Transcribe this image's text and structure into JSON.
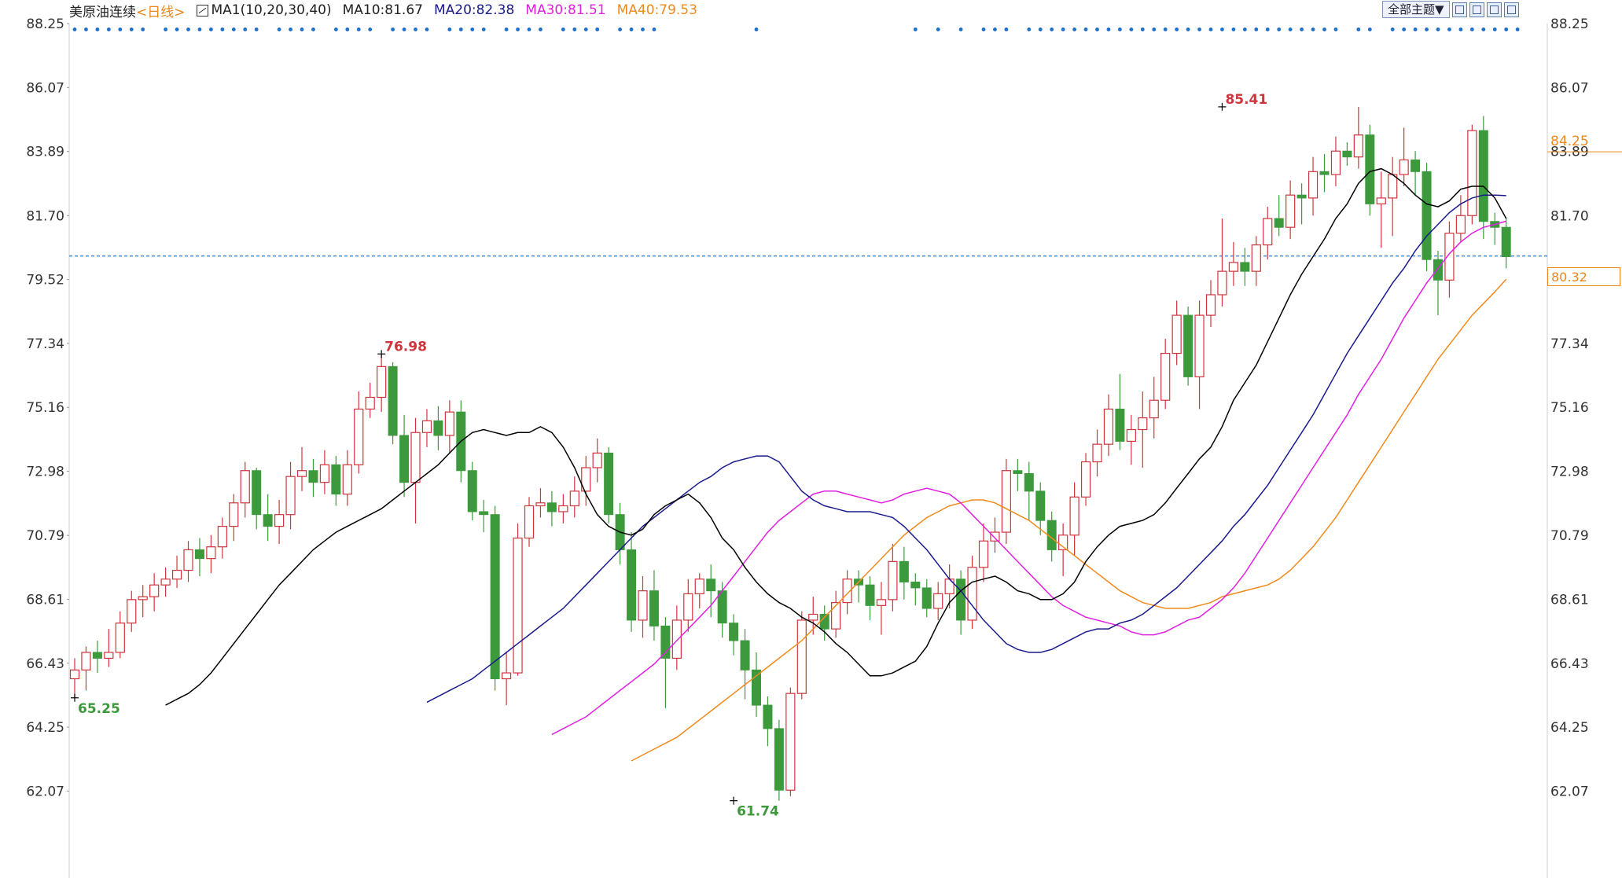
{
  "legend": {
    "symbol": "美原油连续",
    "period": "<日线>",
    "ma_label": "MA1(10,20,30,40)",
    "ma10": "MA10:81.67",
    "ma20": "MA20:82.38",
    "ma30": "MA30:81.51",
    "ma40": "MA40:79.53"
  },
  "toolbar": {
    "theme_button": "全部主题▼",
    "icons": [
      "fullscreen-icon",
      "layout-icon",
      "play-icon",
      "exit-icon"
    ]
  },
  "colors": {
    "up": "#d0343c",
    "down": "#3c9a3c",
    "ma10": "#000000",
    "ma20": "#1a1a8c",
    "ma30": "#e020e0",
    "ma40": "#f08a1c",
    "dots": "#1f6fc8",
    "current_line": "#2a7fd4"
  },
  "price_box": "80.32",
  "chart_data": {
    "type": "candlestick",
    "ylim": [
      60.9,
      88.25
    ],
    "yticks": [
      "88.25",
      "86.07",
      "83.89",
      "81.70",
      "79.52",
      "77.34",
      "75.16",
      "72.98",
      "70.79",
      "68.61",
      "66.43",
      "64.25",
      "62.07"
    ],
    "right_highlight": "84.25",
    "current_price": 80.32,
    "annotations": [
      {
        "label": "65.25",
        "index": 0,
        "value": 65.25,
        "type": "low"
      },
      {
        "label": "76.98",
        "index": 27,
        "value": 76.98,
        "type": "high"
      },
      {
        "label": "61.74",
        "index": 58,
        "value": 61.74,
        "type": "low"
      },
      {
        "label": "85.41",
        "index": 101,
        "value": 85.41,
        "type": "high"
      }
    ],
    "candles": [
      [
        65.9,
        66.2,
        65.25,
        66.6
      ],
      [
        66.2,
        66.8,
        65.5,
        67.0
      ],
      [
        66.8,
        66.6,
        66.1,
        67.2
      ],
      [
        66.6,
        66.8,
        66.3,
        67.6
      ],
      [
        66.8,
        67.8,
        66.6,
        68.2
      ],
      [
        67.8,
        68.6,
        67.5,
        68.9
      ],
      [
        68.6,
        68.7,
        68.0,
        69.1
      ],
      [
        68.7,
        69.1,
        68.2,
        69.5
      ],
      [
        69.1,
        69.3,
        68.7,
        69.7
      ],
      [
        69.3,
        69.6,
        69.0,
        70.1
      ],
      [
        69.6,
        70.3,
        69.2,
        70.6
      ],
      [
        70.3,
        70.0,
        69.4,
        70.7
      ],
      [
        70.0,
        70.4,
        69.5,
        70.8
      ],
      [
        70.4,
        71.1,
        70.0,
        71.4
      ],
      [
        71.1,
        71.9,
        70.6,
        72.2
      ],
      [
        71.9,
        73.0,
        71.4,
        73.3
      ],
      [
        73.0,
        71.5,
        71.0,
        73.1
      ],
      [
        71.5,
        71.1,
        70.6,
        72.2
      ],
      [
        71.1,
        71.5,
        70.5,
        72.0
      ],
      [
        71.5,
        72.8,
        71.0,
        73.3
      ],
      [
        72.8,
        73.0,
        72.3,
        73.8
      ],
      [
        73.0,
        72.6,
        72.1,
        73.4
      ],
      [
        72.6,
        73.2,
        72.2,
        73.7
      ],
      [
        73.2,
        72.2,
        71.8,
        73.5
      ],
      [
        72.2,
        73.2,
        71.8,
        73.7
      ],
      [
        73.2,
        75.1,
        72.9,
        75.7
      ],
      [
        75.1,
        75.5,
        74.8,
        76.0
      ],
      [
        75.5,
        76.55,
        75.0,
        76.98
      ],
      [
        76.55,
        74.2,
        73.9,
        76.7
      ],
      [
        74.2,
        72.6,
        72.1,
        74.9
      ],
      [
        72.6,
        74.3,
        71.2,
        74.8
      ],
      [
        74.3,
        74.7,
        73.8,
        75.1
      ],
      [
        74.7,
        74.2,
        73.7,
        75.2
      ],
      [
        74.2,
        75.0,
        73.6,
        75.4
      ],
      [
        75.0,
        73.0,
        72.6,
        75.4
      ],
      [
        73.0,
        71.6,
        71.3,
        73.3
      ],
      [
        71.6,
        71.5,
        70.9,
        72.0
      ],
      [
        71.5,
        65.9,
        65.5,
        71.8
      ],
      [
        65.9,
        66.1,
        65.0,
        66.8
      ],
      [
        66.1,
        70.7,
        66.0,
        71.2
      ],
      [
        70.7,
        71.8,
        70.4,
        72.1
      ],
      [
        71.8,
        71.9,
        71.4,
        72.4
      ],
      [
        71.9,
        71.6,
        71.1,
        72.3
      ],
      [
        71.6,
        71.8,
        71.2,
        72.2
      ],
      [
        71.8,
        72.3,
        71.4,
        72.8
      ],
      [
        72.3,
        73.1,
        71.8,
        73.5
      ],
      [
        73.1,
        73.6,
        72.6,
        74.1
      ],
      [
        73.6,
        71.5,
        71.2,
        73.8
      ],
      [
        71.5,
        70.3,
        69.8,
        71.9
      ],
      [
        70.3,
        67.9,
        67.5,
        70.9
      ],
      [
        67.9,
        68.9,
        67.3,
        69.4
      ],
      [
        68.9,
        67.7,
        67.2,
        69.6
      ],
      [
        67.7,
        66.6,
        64.9,
        68.0
      ],
      [
        66.6,
        67.9,
        66.2,
        68.4
      ],
      [
        67.9,
        68.8,
        67.5,
        69.3
      ],
      [
        68.8,
        69.3,
        68.3,
        69.5
      ],
      [
        69.3,
        68.9,
        68.0,
        69.8
      ],
      [
        68.9,
        67.8,
        67.3,
        69.2
      ],
      [
        67.8,
        67.2,
        66.7,
        68.1
      ],
      [
        67.2,
        66.2,
        65.2,
        67.6
      ],
      [
        66.2,
        65.0,
        64.6,
        66.8
      ],
      [
        65.0,
        64.2,
        63.6,
        65.3
      ],
      [
        64.2,
        62.1,
        61.74,
        64.5
      ],
      [
        62.1,
        65.4,
        61.9,
        65.6
      ],
      [
        65.4,
        67.9,
        65.2,
        68.2
      ],
      [
        67.9,
        68.1,
        67.4,
        68.7
      ],
      [
        68.1,
        67.6,
        67.2,
        68.4
      ],
      [
        67.6,
        68.5,
        67.3,
        68.9
      ],
      [
        68.5,
        69.3,
        68.1,
        69.6
      ],
      [
        69.3,
        69.1,
        68.5,
        69.6
      ],
      [
        69.1,
        68.4,
        67.9,
        69.4
      ],
      [
        68.4,
        68.6,
        67.4,
        69.2
      ],
      [
        68.6,
        69.9,
        68.2,
        70.5
      ],
      [
        69.9,
        69.2,
        68.6,
        70.4
      ],
      [
        69.2,
        69.0,
        68.4,
        69.5
      ],
      [
        69.0,
        68.3,
        68.0,
        69.3
      ],
      [
        68.3,
        68.8,
        67.9,
        69.2
      ],
      [
        68.8,
        69.3,
        68.3,
        69.8
      ],
      [
        69.3,
        67.9,
        67.4,
        69.6
      ],
      [
        67.9,
        69.7,
        67.6,
        70.1
      ],
      [
        69.7,
        70.6,
        69.2,
        71.2
      ],
      [
        70.6,
        70.9,
        70.2,
        71.4
      ],
      [
        70.9,
        73.0,
        70.5,
        73.4
      ],
      [
        73.0,
        72.9,
        72.3,
        73.4
      ],
      [
        72.9,
        72.3,
        71.3,
        73.3
      ],
      [
        72.3,
        71.3,
        70.8,
        72.6
      ],
      [
        71.3,
        70.3,
        69.9,
        71.6
      ],
      [
        70.3,
        70.8,
        69.4,
        71.2
      ],
      [
        70.8,
        72.1,
        70.1,
        72.6
      ],
      [
        72.1,
        73.3,
        71.8,
        73.6
      ],
      [
        73.3,
        73.9,
        72.8,
        74.4
      ],
      [
        73.9,
        75.1,
        73.5,
        75.6
      ],
      [
        75.1,
        74.0,
        73.7,
        76.3
      ],
      [
        74.0,
        74.4,
        73.2,
        74.9
      ],
      [
        74.4,
        74.8,
        73.1,
        75.7
      ],
      [
        74.8,
        75.4,
        74.1,
        76.2
      ],
      [
        75.4,
        77.0,
        75.1,
        77.5
      ],
      [
        77.0,
        78.3,
        76.6,
        78.8
      ],
      [
        78.3,
        76.2,
        75.9,
        78.6
      ],
      [
        76.2,
        78.3,
        75.1,
        78.8
      ],
      [
        78.3,
        79.0,
        77.9,
        79.5
      ],
      [
        79.0,
        79.8,
        78.6,
        81.6
      ],
      [
        79.8,
        80.1,
        79.3,
        80.8
      ],
      [
        80.1,
        79.8,
        79.3,
        80.6
      ],
      [
        79.8,
        80.7,
        79.3,
        81.0
      ],
      [
        80.7,
        81.6,
        80.2,
        82.0
      ],
      [
        81.6,
        81.3,
        81.0,
        82.4
      ],
      [
        81.3,
        82.4,
        80.9,
        82.9
      ],
      [
        82.4,
        82.3,
        81.4,
        82.8
      ],
      [
        82.3,
        83.2,
        81.7,
        83.7
      ],
      [
        83.2,
        83.1,
        82.5,
        83.8
      ],
      [
        83.1,
        83.9,
        82.7,
        84.4
      ],
      [
        83.9,
        83.7,
        83.4,
        84.2
      ],
      [
        83.7,
        84.45,
        83.3,
        85.41
      ],
      [
        84.45,
        82.1,
        81.7,
        84.8
      ],
      [
        82.1,
        82.3,
        80.6,
        83.2
      ],
      [
        82.3,
        83.1,
        81.0,
        83.7
      ],
      [
        83.1,
        83.6,
        82.7,
        84.7
      ],
      [
        83.6,
        83.2,
        82.4,
        83.9
      ],
      [
        83.2,
        80.2,
        79.8,
        83.5
      ],
      [
        80.2,
        79.5,
        78.3,
        80.5
      ],
      [
        79.5,
        81.1,
        78.9,
        81.5
      ],
      [
        81.1,
        81.7,
        80.8,
        82.4
      ],
      [
        81.7,
        84.6,
        81.4,
        84.8
      ],
      [
        84.6,
        81.5,
        80.9,
        85.1
      ],
      [
        81.5,
        81.3,
        80.7,
        81.8
      ],
      [
        81.3,
        80.3,
        79.9,
        81.6
      ]
    ],
    "ma10": [
      65.0,
      65.2,
      65.4,
      65.7,
      66.1,
      66.6,
      67.1,
      67.6,
      68.1,
      68.6,
      69.1,
      69.5,
      69.9,
      70.3,
      70.6,
      70.9,
      71.1,
      71.3,
      71.5,
      71.7,
      72.0,
      72.3,
      72.6,
      72.9,
      73.2,
      73.6,
      74.0,
      74.3,
      74.4,
      74.3,
      74.2,
      74.3,
      74.3,
      74.5,
      74.3,
      73.8,
      73.1,
      72.2,
      71.5,
      71.1,
      70.9,
      70.8,
      71.0,
      71.5,
      71.8,
      72.0,
      72.2,
      71.9,
      71.4,
      70.7,
      70.3,
      69.7,
      69.2,
      68.8,
      68.5,
      68.3,
      68.0,
      67.8,
      67.5,
      67.1,
      66.8,
      66.4,
      66.0,
      66.0,
      66.1,
      66.3,
      66.5,
      67.0,
      67.8,
      68.5,
      68.9,
      69.2,
      69.3,
      69.4,
      69.2,
      68.9,
      68.8,
      68.6,
      68.6,
      68.8,
      69.2,
      69.9,
      70.4,
      70.8,
      71.1,
      71.2,
      71.3,
      71.5,
      71.9,
      72.4,
      72.9,
      73.4,
      73.8,
      74.5,
      75.4,
      76.0,
      76.6,
      77.4,
      78.2,
      79.0,
      79.7,
      80.3,
      80.9,
      81.6,
      82.1,
      82.8,
      83.2,
      83.3,
      83.1,
      82.8,
      82.4,
      82.1,
      82.0,
      82.2,
      82.6,
      82.7,
      82.7,
      82.3,
      81.6
    ],
    "ma20": [
      65.1,
      65.3,
      65.5,
      65.7,
      65.9,
      66.2,
      66.5,
      66.8,
      67.1,
      67.4,
      67.7,
      68.0,
      68.3,
      68.7,
      69.1,
      69.5,
      69.9,
      70.3,
      70.7,
      71.1,
      71.4,
      71.7,
      72.0,
      72.3,
      72.6,
      72.8,
      73.1,
      73.3,
      73.4,
      73.5,
      73.5,
      73.3,
      72.8,
      72.3,
      72.0,
      71.8,
      71.7,
      71.6,
      71.6,
      71.6,
      71.5,
      71.4,
      71.1,
      70.7,
      70.3,
      69.8,
      69.3,
      68.9,
      68.4,
      67.9,
      67.5,
      67.1,
      66.9,
      66.8,
      66.8,
      66.9,
      67.1,
      67.3,
      67.5,
      67.6,
      67.6,
      67.8,
      67.9,
      68.1,
      68.4,
      68.7,
      69.0,
      69.4,
      69.8,
      70.2,
      70.6,
      71.1,
      71.5,
      72.0,
      72.5,
      73.1,
      73.7,
      74.3,
      74.9,
      75.6,
      76.3,
      77.0,
      77.6,
      78.2,
      78.8,
      79.4,
      79.9,
      80.5,
      81.0,
      81.4,
      81.8,
      82.1,
      82.3,
      82.4,
      82.4,
      82.38
    ],
    "ma30": [
      64.0,
      64.2,
      64.4,
      64.6,
      64.9,
      65.2,
      65.5,
      65.8,
      66.1,
      66.4,
      66.8,
      67.2,
      67.6,
      68.0,
      68.4,
      68.9,
      69.4,
      69.9,
      70.4,
      70.9,
      71.3,
      71.6,
      71.9,
      72.2,
      72.3,
      72.3,
      72.2,
      72.1,
      72.0,
      71.9,
      72.0,
      72.2,
      72.3,
      72.4,
      72.3,
      72.2,
      71.9,
      71.5,
      71.1,
      70.7,
      70.3,
      69.9,
      69.5,
      69.1,
      68.7,
      68.4,
      68.2,
      68.0,
      67.9,
      67.8,
      67.7,
      67.5,
      67.4,
      67.4,
      67.5,
      67.7,
      67.9,
      68.0,
      68.3,
      68.6,
      69.0,
      69.5,
      70.1,
      70.7,
      71.3,
      71.9,
      72.5,
      73.1,
      73.7,
      74.3,
      74.9,
      75.6,
      76.2,
      76.8,
      77.5,
      78.2,
      78.8,
      79.4,
      79.9,
      80.4,
      80.8,
      81.1,
      81.3,
      81.4,
      81.51
    ],
    "ma40": [
      63.1,
      63.3,
      63.5,
      63.7,
      63.9,
      64.2,
      64.5,
      64.8,
      65.1,
      65.4,
      65.7,
      66.0,
      66.3,
      66.6,
      66.9,
      67.2,
      67.6,
      68.0,
      68.4,
      68.8,
      69.2,
      69.6,
      70.0,
      70.4,
      70.8,
      71.1,
      71.4,
      71.6,
      71.8,
      71.9,
      72.0,
      72.0,
      71.9,
      71.7,
      71.5,
      71.3,
      71.0,
      70.7,
      70.4,
      70.1,
      69.8,
      69.5,
      69.2,
      68.9,
      68.7,
      68.5,
      68.4,
      68.3,
      68.3,
      68.3,
      68.4,
      68.5,
      68.7,
      68.8,
      68.9,
      69.0,
      69.1,
      69.3,
      69.6,
      70.0,
      70.4,
      70.9,
      71.4,
      72.0,
      72.6,
      73.2,
      73.8,
      74.4,
      75.0,
      75.6,
      76.2,
      76.8,
      77.3,
      77.8,
      78.3,
      78.7,
      79.1,
      79.53
    ],
    "dot_row": {
      "value": 88.05,
      "indices": [
        0,
        1,
        2,
        3,
        4,
        5,
        6,
        8,
        9,
        10,
        11,
        12,
        13,
        14,
        15,
        16,
        18,
        19,
        20,
        21,
        23,
        24,
        25,
        26,
        28,
        29,
        30,
        31,
        33,
        34,
        35,
        36,
        38,
        39,
        40,
        41,
        43,
        44,
        45,
        46,
        48,
        49,
        50,
        51,
        60,
        74,
        76,
        78,
        80,
        81,
        82,
        84,
        85,
        86,
        87,
        88,
        89,
        90,
        91,
        92,
        93,
        94,
        95,
        96,
        97,
        98,
        99,
        100,
        101,
        102,
        103,
        104,
        105,
        106,
        107,
        108,
        109,
        110,
        111,
        113,
        114,
        116,
        117,
        118,
        119,
        120,
        121,
        122,
        123,
        124,
        125,
        126,
        127
      ]
    }
  }
}
